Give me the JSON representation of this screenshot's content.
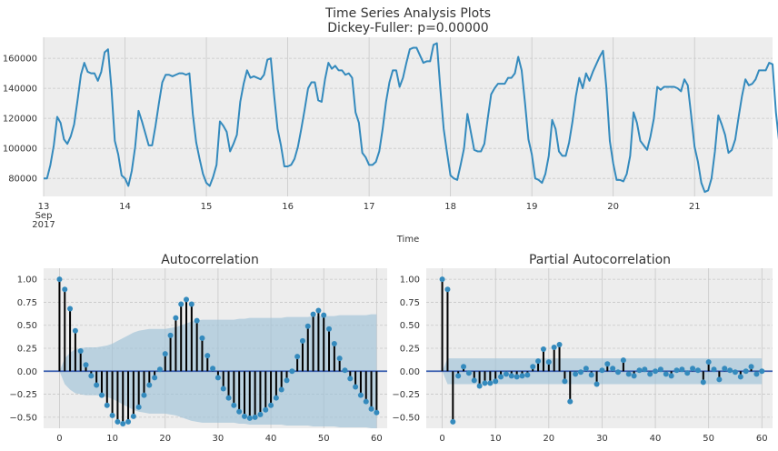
{
  "figure": {
    "colors": {
      "background": "#ededed",
      "grid": "#c8c8c8",
      "line": "#348abd",
      "stem": "#000000",
      "marker": "#348abd",
      "band": "#9ec1d7",
      "zero": "#3a5fb0"
    }
  },
  "chart_data": [
    {
      "type": "line",
      "title": "Time Series Analysis Plots\nDickey-Fuller: p=0.00000",
      "title_lines": [
        "Time Series Analysis Plots",
        "Dickey-Fuller: p=0.00000"
      ],
      "xlabel": "Time",
      "ylabel": "",
      "xlim": [
        0,
        215
      ],
      "ylim": [
        68000,
        174000
      ],
      "yticks": [
        80000,
        100000,
        120000,
        140000,
        160000
      ],
      "ytick_labels": [
        "80000",
        "100000",
        "120000",
        "140000",
        "160000"
      ],
      "xticks": [
        0,
        24,
        48,
        72,
        96,
        120,
        144,
        168,
        192
      ],
      "xtick_labels": [
        "13\nSep\n2017",
        "14",
        "15",
        "16",
        "17",
        "18",
        "19",
        "20",
        "21"
      ],
      "grid": true,
      "x_start": "2017-09-13 00:00",
      "x_step": "1 hour",
      "series": [
        {
          "values": [
            80000,
            80000,
            89000,
            102000,
            121000,
            117000,
            106000,
            103000,
            108000,
            116000,
            132000,
            149000,
            157000,
            151000,
            150000,
            150000,
            145000,
            151000,
            164000,
            166000,
            140000,
            105000,
            96000,
            82000,
            80000,
            75000,
            85000,
            101000,
            125000,
            118000,
            110000,
            102000,
            102000,
            115000,
            130000,
            144000,
            149000,
            149000,
            148000,
            149000,
            150000,
            150000,
            149000,
            150000,
            123000,
            104000,
            93000,
            83000,
            77000,
            75000,
            81000,
            89000,
            118000,
            115000,
            111000,
            98000,
            103000,
            109000,
            131000,
            143000,
            152000,
            147000,
            148000,
            147000,
            146000,
            149000,
            159000,
            160000,
            135000,
            113000,
            102000,
            88000,
            88000,
            89000,
            93000,
            101000,
            113000,
            126000,
            140000,
            144000,
            144000,
            132000,
            131000,
            146000,
            157000,
            153000,
            155000,
            152000,
            152000,
            149000,
            150000,
            147000,
            124000,
            117000,
            97000,
            94000,
            89000,
            89000,
            91000,
            98000,
            113000,
            131000,
            144000,
            152000,
            152000,
            141000,
            147000,
            157000,
            166000,
            167000,
            167000,
            162000,
            157000,
            158000,
            158000,
            169000,
            170000,
            140000,
            113000,
            97000,
            82000,
            80000,
            79000,
            89000,
            100000,
            123000,
            111000,
            99000,
            98000,
            98000,
            103000,
            120000,
            136000,
            140000,
            143000,
            143000,
            143000,
            147000,
            147000,
            150000,
            161000,
            152000,
            130000,
            106000,
            96000,
            80000,
            79000,
            77000,
            83000,
            95000,
            119000,
            113000,
            98000,
            95000,
            95000,
            104000,
            118000,
            135000,
            147000,
            140000,
            150000,
            145000,
            151000,
            156000,
            161000,
            165000,
            140000,
            105000,
            90000,
            79000,
            79000,
            78000,
            83000,
            95000,
            124000,
            117000,
            105000,
            102000,
            99000,
            108000,
            120000,
            141000,
            139000,
            141000,
            141000,
            141000,
            141000,
            140000,
            138000,
            146000,
            142000,
            122000,
            101000,
            91000,
            77000,
            71000,
            72000,
            80000,
            98000,
            122000,
            116000,
            109000,
            97000,
            99000,
            106000,
            121000,
            135000,
            146000,
            142000,
            143000,
            146000,
            152000,
            152000,
            152000,
            157000,
            156000,
            124000,
            103000,
            96000,
            80000
          ]
        }
      ]
    },
    {
      "type": "bar",
      "subtype": "stem",
      "title": "Autocorrelation",
      "xlabel": "",
      "ylabel": "",
      "xlim": [
        -3,
        62
      ],
      "ylim": [
        -0.62,
        1.12
      ],
      "xticks": [
        0,
        10,
        20,
        30,
        40,
        50,
        60
      ],
      "xtick_labels": [
        "0",
        "10",
        "20",
        "30",
        "40",
        "50",
        "60"
      ],
      "yticks": [
        -0.5,
        -0.25,
        0.0,
        0.25,
        0.5,
        0.75,
        1.0
      ],
      "ytick_labels": [
        "−0.50",
        "−0.25",
        "0.00",
        "0.25",
        "0.50",
        "0.75",
        "1.00"
      ],
      "grid": true,
      "x": [
        0,
        1,
        2,
        3,
        4,
        5,
        6,
        7,
        8,
        9,
        10,
        11,
        12,
        13,
        14,
        15,
        16,
        17,
        18,
        19,
        20,
        21,
        22,
        23,
        24,
        25,
        26,
        27,
        28,
        29,
        30,
        31,
        32,
        33,
        34,
        35,
        36,
        37,
        38,
        39,
        40,
        41,
        42,
        43,
        44,
        45,
        46,
        47,
        48,
        49,
        50,
        51,
        52,
        53,
        54,
        55,
        56,
        57,
        58,
        59,
        60
      ],
      "values": [
        1.0,
        0.89,
        0.68,
        0.44,
        0.22,
        0.07,
        -0.05,
        -0.15,
        -0.26,
        -0.37,
        -0.48,
        -0.55,
        -0.57,
        -0.55,
        -0.49,
        -0.39,
        -0.26,
        -0.15,
        -0.07,
        0.02,
        0.19,
        0.39,
        0.58,
        0.73,
        0.78,
        0.73,
        0.55,
        0.36,
        0.17,
        0.03,
        -0.07,
        -0.19,
        -0.29,
        -0.37,
        -0.44,
        -0.49,
        -0.51,
        -0.5,
        -0.47,
        -0.42,
        -0.37,
        -0.29,
        -0.2,
        -0.1,
        0.0,
        0.16,
        0.33,
        0.49,
        0.62,
        0.66,
        0.61,
        0.46,
        0.3,
        0.14,
        0.01,
        -0.08,
        -0.17,
        -0.26,
        -0.33,
        -0.41,
        -0.45
      ],
      "confidence_band_upper": [
        0.0,
        0.14,
        0.2,
        0.24,
        0.25,
        0.26,
        0.26,
        0.26,
        0.27,
        0.28,
        0.3,
        0.33,
        0.36,
        0.39,
        0.42,
        0.44,
        0.45,
        0.46,
        0.46,
        0.46,
        0.46,
        0.47,
        0.48,
        0.5,
        0.52,
        0.54,
        0.55,
        0.56,
        0.56,
        0.56,
        0.56,
        0.56,
        0.56,
        0.56,
        0.57,
        0.57,
        0.58,
        0.58,
        0.58,
        0.58,
        0.58,
        0.58,
        0.58,
        0.59,
        0.59,
        0.59,
        0.59,
        0.59,
        0.6,
        0.6,
        0.6,
        0.6,
        0.6,
        0.61,
        0.61,
        0.61,
        0.61,
        0.61,
        0.61,
        0.62,
        0.62
      ]
    },
    {
      "type": "bar",
      "subtype": "stem",
      "title": "Partial Autocorrelation",
      "xlabel": "",
      "ylabel": "",
      "xlim": [
        -3,
        62
      ],
      "ylim": [
        -0.62,
        1.12
      ],
      "xticks": [
        0,
        10,
        20,
        30,
        40,
        50,
        60
      ],
      "xtick_labels": [
        "0",
        "10",
        "20",
        "30",
        "40",
        "50",
        "60"
      ],
      "yticks": [
        -0.5,
        -0.25,
        0.0,
        0.25,
        0.5,
        0.75,
        1.0
      ],
      "ytick_labels": [
        "−0.50",
        "−0.25",
        "0.00",
        "0.25",
        "0.50",
        "0.75",
        "1.00"
      ],
      "grid": true,
      "x": [
        0,
        1,
        2,
        3,
        4,
        5,
        6,
        7,
        8,
        9,
        10,
        11,
        12,
        13,
        14,
        15,
        16,
        17,
        18,
        19,
        20,
        21,
        22,
        23,
        24,
        25,
        26,
        27,
        28,
        29,
        30,
        31,
        32,
        33,
        34,
        35,
        36,
        37,
        38,
        39,
        40,
        41,
        42,
        43,
        44,
        45,
        46,
        47,
        48,
        49,
        50,
        51,
        52,
        53,
        54,
        55,
        56,
        57,
        58,
        59,
        60
      ],
      "values": [
        1.0,
        0.89,
        -0.55,
        -0.05,
        0.05,
        -0.02,
        -0.1,
        -0.16,
        -0.13,
        -0.13,
        -0.11,
        -0.06,
        -0.03,
        -0.05,
        -0.06,
        -0.05,
        -0.04,
        0.05,
        0.11,
        0.24,
        0.1,
        0.26,
        0.29,
        -0.11,
        -0.33,
        -0.03,
        -0.01,
        0.03,
        -0.04,
        -0.14,
        0.01,
        0.08,
        0.03,
        -0.01,
        0.12,
        -0.03,
        -0.05,
        0.01,
        0.02,
        -0.03,
        0.0,
        0.02,
        -0.03,
        -0.05,
        0.01,
        0.02,
        -0.02,
        0.03,
        0.01,
        -0.12,
        0.1,
        0.02,
        -0.09,
        0.03,
        0.01,
        -0.01,
        -0.06,
        0.0,
        0.05,
        -0.03,
        0.0
      ],
      "confidence_band_upper": [
        0.0,
        0.14,
        0.14,
        0.14,
        0.14,
        0.14,
        0.14,
        0.14,
        0.14,
        0.14,
        0.14,
        0.14,
        0.14,
        0.14,
        0.14,
        0.14,
        0.14,
        0.14,
        0.14,
        0.14,
        0.14,
        0.14,
        0.14,
        0.14,
        0.14,
        0.14,
        0.14,
        0.14,
        0.14,
        0.14,
        0.14,
        0.14,
        0.14,
        0.14,
        0.14,
        0.14,
        0.14,
        0.14,
        0.14,
        0.14,
        0.14,
        0.14,
        0.14,
        0.14,
        0.14,
        0.14,
        0.14,
        0.14,
        0.14,
        0.14,
        0.14,
        0.14,
        0.14,
        0.14,
        0.14,
        0.14,
        0.14,
        0.14,
        0.14,
        0.14,
        0.14
      ]
    }
  ]
}
